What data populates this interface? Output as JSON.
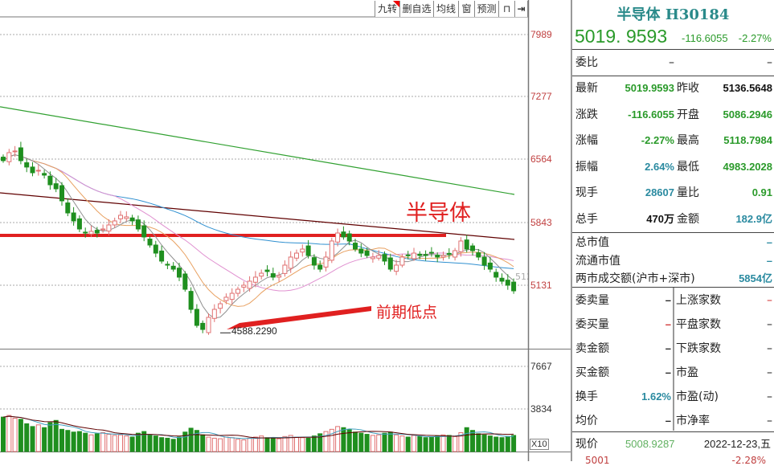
{
  "toolbar": {
    "items": [
      "九转",
      "删自选",
      "均线",
      "窗",
      "预测"
    ],
    "lock_icon": "lock-icon",
    "exit_icon": "arrow-right-bar-icon"
  },
  "price_axis": {
    "ticks": [
      "7989",
      "7277",
      "6564",
      "5843",
      "5131"
    ],
    "partial_label": "512"
  },
  "volume_axis": {
    "ticks": [
      "7667",
      "3834"
    ],
    "unit": "X10"
  },
  "annotations": {
    "title": "半导体",
    "low_text": "前期低点",
    "low_value": "4588.2290"
  },
  "colors": {
    "up": "#e07070",
    "down": "#1f8f1f",
    "ma5": "#909090",
    "ma10": "#e8a060",
    "ma20": "#e090d0",
    "ma60": "#3090d0",
    "ma_dark": "#600000",
    "ma_green": "#30a030",
    "support": "#e02020"
  },
  "chart_data": {
    "type": "candlestick",
    "closes": [
      6551,
      6642,
      6661,
      6551,
      6478,
      6413,
      6441,
      6386,
      6276,
      6230,
      6093,
      5955,
      5864,
      5772,
      5726,
      5745,
      5726,
      5772,
      5818,
      5864,
      5928,
      5910,
      5864,
      5772,
      5681,
      5589,
      5497,
      5406,
      5360,
      5314,
      5223,
      5085,
      4856,
      4673,
      4627,
      4765,
      4856,
      4920,
      4994,
      5039,
      5085,
      5131,
      5177,
      5223,
      5268,
      5287,
      5223,
      5241,
      5360,
      5452,
      5497,
      5543,
      5470,
      5360,
      5314,
      5452,
      5635,
      5726,
      5681,
      5635,
      5543,
      5497,
      5470,
      5452,
      5470,
      5406,
      5314,
      5360,
      5452,
      5470,
      5497,
      5470,
      5470,
      5497,
      5452,
      5470,
      5488,
      5525,
      5635,
      5543,
      5525,
      5452,
      5360,
      5314,
      5223,
      5177,
      5131,
      5067
    ],
    "volumes": [
      6200,
      6500,
      6000,
      5800,
      5000,
      4500,
      4800,
      4300,
      5200,
      5600,
      4000,
      3800,
      3500,
      3600,
      3300,
      3000,
      3200,
      3400,
      3100,
      2900,
      3000,
      2800,
      2600,
      3300,
      3600,
      3000,
      2800,
      2500,
      2400,
      2200,
      2600,
      3500,
      4200,
      3800,
      3000,
      2600,
      2400,
      2300,
      2600,
      2500,
      2200,
      2100,
      2400,
      2600,
      2800,
      2500,
      2400,
      2300,
      2700,
      2900,
      2600,
      2500,
      2400,
      2800,
      3200,
      3600,
      4000,
      4500,
      4300,
      3900,
      3500,
      3300,
      3100,
      2900,
      3000,
      3300,
      3500,
      3000,
      2800,
      2600,
      2900,
      2700,
      2500,
      2600,
      2800,
      3000,
      2900,
      2700,
      3400,
      4300,
      3800,
      3200,
      3000,
      2800,
      2600,
      2500,
      2700,
      2900
    ],
    "low": 4588.229,
    "support_level": 5699,
    "ma_long_green": [
      7165,
      6166
    ],
    "ma_long_dark": [
      6184,
      5653
    ],
    "ylim": [
      4500,
      8200
    ],
    "volume_ylim": [
      0,
      8500
    ]
  },
  "panel": {
    "title": "半导体 H30184",
    "price": "5019. 9593",
    "change": "-116.6055",
    "pct": "-2.27%",
    "weibi": {
      "label": "委比",
      "v1": "–",
      "v2": "–"
    },
    "quote": [
      {
        "l1": "最新",
        "v1": "5019.9593",
        "c1": "g",
        "l2": "昨收",
        "v2": "5136.5648",
        "c2": "k"
      },
      {
        "l1": "涨跌",
        "v1": "-116.6055",
        "c1": "g",
        "l2": "开盘",
        "v2": "5086.2946",
        "c2": "g"
      },
      {
        "l1": "涨幅",
        "v1": "-2.27%",
        "c1": "g",
        "l2": "最高",
        "v2": "5118.7984",
        "c2": "g"
      },
      {
        "l1": "振幅",
        "v1": "2.64%",
        "c1": "b",
        "l2": "最低",
        "v2": "4983.2028",
        "c2": "g"
      },
      {
        "l1": "现手",
        "v1": "28607",
        "c1": "b",
        "l2": "量比",
        "v2": "0.91",
        "c2": "g"
      },
      {
        "l1": "总手",
        "v1": "470万",
        "c1": "k",
        "l2": "金额",
        "v2": "182.9亿",
        "c2": "b"
      }
    ],
    "market": [
      {
        "label": "总市值",
        "value": "–"
      },
      {
        "label": "流通市值",
        "value": "–"
      },
      {
        "label": "两市成交额(沪市+深市)",
        "value": "5854亿"
      }
    ],
    "grid": [
      {
        "l1": "委卖量",
        "v1": "–",
        "l2": "上涨家数",
        "v2": "–",
        "c2": "r"
      },
      {
        "l1": "委买量",
        "v1": "–",
        "c1": "r",
        "l2": "平盘家数",
        "v2": "–"
      },
      {
        "l1": "卖金额",
        "v1": "–",
        "l2": "下跌家数",
        "v2": "–"
      },
      {
        "l1": "买金额",
        "v1": "–",
        "l2": "市盈",
        "v2": "–"
      },
      {
        "l1": "换手",
        "v1": "1.62%",
        "c1": "b",
        "l2": "市盈(动)",
        "v2": "–"
      },
      {
        "l1": "均价",
        "v1": "–",
        "l2": "市净率",
        "v2": "–"
      }
    ],
    "current": {
      "label": "现价",
      "value": "5008.9287",
      "date": "2022-12-23,五"
    },
    "partial": {
      "left": "5001",
      "right": "-2.28%"
    }
  }
}
